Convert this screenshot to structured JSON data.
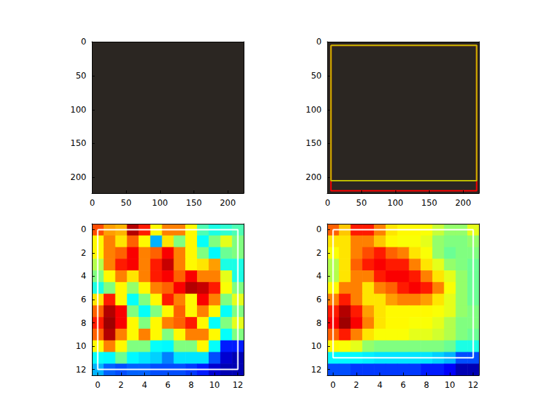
{
  "chart_data": [
    {
      "type": "image",
      "xlim": [
        -0.5,
        223.5
      ],
      "ylim": [
        223.5,
        -0.5
      ],
      "xticks": [
        0,
        50,
        100,
        150,
        200
      ],
      "yticks": [
        0,
        50,
        100,
        150,
        200
      ]
    },
    {
      "type": "image",
      "xlim": [
        -0.5,
        223.5
      ],
      "ylim": [
        223.5,
        -0.5
      ],
      "xticks": [
        0,
        50,
        100,
        150,
        200
      ],
      "yticks": [
        0,
        50,
        100,
        150,
        200
      ],
      "boxes": [
        {
          "x0": 5,
          "y0": 5,
          "x1": 220,
          "y1": 220,
          "color": "#ff0000"
        },
        {
          "x0": 5,
          "y0": 5,
          "x1": 220,
          "y1": 205,
          "color": "#bfbf00"
        }
      ]
    },
    {
      "type": "heatmap",
      "xlim": [
        -0.5,
        12.5
      ],
      "ylim": [
        12.5,
        -0.5
      ],
      "xticks": [
        0,
        2,
        4,
        6,
        8,
        10,
        12
      ],
      "yticks": [
        0,
        2,
        4,
        6,
        8,
        10,
        12
      ],
      "zlim": [
        0,
        1
      ],
      "cells": [
        [
          0.8,
          0.72,
          0.7,
          0.95,
          0.85,
          0.63,
          0.75,
          0.75,
          0.63,
          0.45,
          0.4,
          0.42,
          0.45
        ],
        [
          0.63,
          0.75,
          0.65,
          0.78,
          0.63,
          0.3,
          0.65,
          0.5,
          0.63,
          0.38,
          0.5,
          0.6,
          0.5
        ],
        [
          0.63,
          0.75,
          0.78,
          0.88,
          0.75,
          0.78,
          0.88,
          0.75,
          0.63,
          0.5,
          0.37,
          0.48,
          0.5
        ],
        [
          0.55,
          0.75,
          0.85,
          0.88,
          0.75,
          0.85,
          0.93,
          0.75,
          0.63,
          0.65,
          0.72,
          0.4,
          0.4
        ],
        [
          0.5,
          0.63,
          0.75,
          0.65,
          0.75,
          0.85,
          0.88,
          0.78,
          0.88,
          0.75,
          0.75,
          0.6,
          0.4
        ],
        [
          0.4,
          0.5,
          0.63,
          0.52,
          0.63,
          0.75,
          0.78,
          0.88,
          0.95,
          0.93,
          0.85,
          0.62,
          0.5
        ],
        [
          0.65,
          0.85,
          0.63,
          0.38,
          0.5,
          0.63,
          0.85,
          0.75,
          0.63,
          0.88,
          0.75,
          0.5,
          0.6
        ],
        [
          0.78,
          0.95,
          0.88,
          0.5,
          0.38,
          0.5,
          0.63,
          0.78,
          0.63,
          0.75,
          0.63,
          0.38,
          0.5
        ],
        [
          0.85,
          0.97,
          0.88,
          0.63,
          0.5,
          0.63,
          0.75,
          0.78,
          0.85,
          0.63,
          0.38,
          0.5,
          0.6
        ],
        [
          0.78,
          0.95,
          0.75,
          0.63,
          0.75,
          0.63,
          0.5,
          0.63,
          0.75,
          0.75,
          0.63,
          0.38,
          0.5
        ],
        [
          0.63,
          0.75,
          0.63,
          0.5,
          0.5,
          0.38,
          0.37,
          0.5,
          0.5,
          0.63,
          0.38,
          0.15,
          0.15
        ],
        [
          0.38,
          0.37,
          0.48,
          0.37,
          0.35,
          0.33,
          0.25,
          0.35,
          0.35,
          0.35,
          0.2,
          0.08,
          0.05
        ],
        [
          0.3,
          0.22,
          0.2,
          0.22,
          0.22,
          0.2,
          0.2,
          0.2,
          0.18,
          0.15,
          0.08,
          0.05,
          0.05
        ]
      ],
      "boxes": [
        {
          "x0": 0,
          "y0": 0,
          "x1": 12,
          "y1": 12,
          "color": "#ffffff"
        }
      ]
    },
    {
      "type": "heatmap",
      "xlim": [
        -0.5,
        12.5
      ],
      "ylim": [
        12.5,
        -0.5
      ],
      "xticks": [
        0,
        2,
        4,
        6,
        8,
        10,
        12
      ],
      "yticks": [
        0,
        2,
        4,
        6,
        8,
        10,
        12
      ],
      "zlim": [
        0,
        1
      ],
      "cells": [
        [
          0.78,
          0.68,
          0.85,
          0.85,
          0.75,
          0.65,
          0.63,
          0.63,
          0.62,
          0.57,
          0.52,
          0.52,
          0.6
        ],
        [
          0.65,
          0.65,
          0.75,
          0.75,
          0.68,
          0.63,
          0.62,
          0.62,
          0.6,
          0.52,
          0.5,
          0.5,
          0.52
        ],
        [
          0.62,
          0.65,
          0.75,
          0.8,
          0.85,
          0.78,
          0.75,
          0.65,
          0.62,
          0.52,
          0.48,
          0.5,
          0.5
        ],
        [
          0.55,
          0.65,
          0.78,
          0.85,
          0.88,
          0.85,
          0.85,
          0.75,
          0.65,
          0.6,
          0.52,
          0.5,
          0.48
        ],
        [
          0.55,
          0.65,
          0.75,
          0.75,
          0.85,
          0.88,
          0.88,
          0.85,
          0.75,
          0.65,
          0.6,
          0.52,
          0.48
        ],
        [
          0.63,
          0.75,
          0.75,
          0.65,
          0.75,
          0.78,
          0.85,
          0.88,
          0.85,
          0.75,
          0.62,
          0.52,
          0.48
        ],
        [
          0.75,
          0.85,
          0.75,
          0.65,
          0.65,
          0.72,
          0.75,
          0.75,
          0.72,
          0.65,
          0.6,
          0.52,
          0.48
        ],
        [
          0.85,
          0.95,
          0.85,
          0.72,
          0.65,
          0.63,
          0.63,
          0.63,
          0.63,
          0.62,
          0.6,
          0.52,
          0.5
        ],
        [
          0.88,
          0.97,
          0.88,
          0.75,
          0.65,
          0.63,
          0.63,
          0.62,
          0.62,
          0.6,
          0.55,
          0.5,
          0.5
        ],
        [
          0.78,
          0.85,
          0.75,
          0.65,
          0.62,
          0.62,
          0.62,
          0.6,
          0.6,
          0.58,
          0.55,
          0.5,
          0.48
        ],
        [
          0.63,
          0.62,
          0.6,
          0.52,
          0.5,
          0.5,
          0.5,
          0.5,
          0.5,
          0.5,
          0.48,
          0.4,
          0.4
        ],
        [
          0.37,
          0.37,
          0.37,
          0.36,
          0.35,
          0.35,
          0.35,
          0.35,
          0.35,
          0.33,
          0.3,
          0.2,
          0.2
        ],
        [
          0.2,
          0.2,
          0.18,
          0.18,
          0.18,
          0.18,
          0.18,
          0.18,
          0.15,
          0.15,
          0.12,
          0.05,
          0.05
        ]
      ],
      "boxes": [
        {
          "x0": 0,
          "y0": 0,
          "x1": 12,
          "y1": 11,
          "color": "#ffffff"
        }
      ]
    }
  ]
}
